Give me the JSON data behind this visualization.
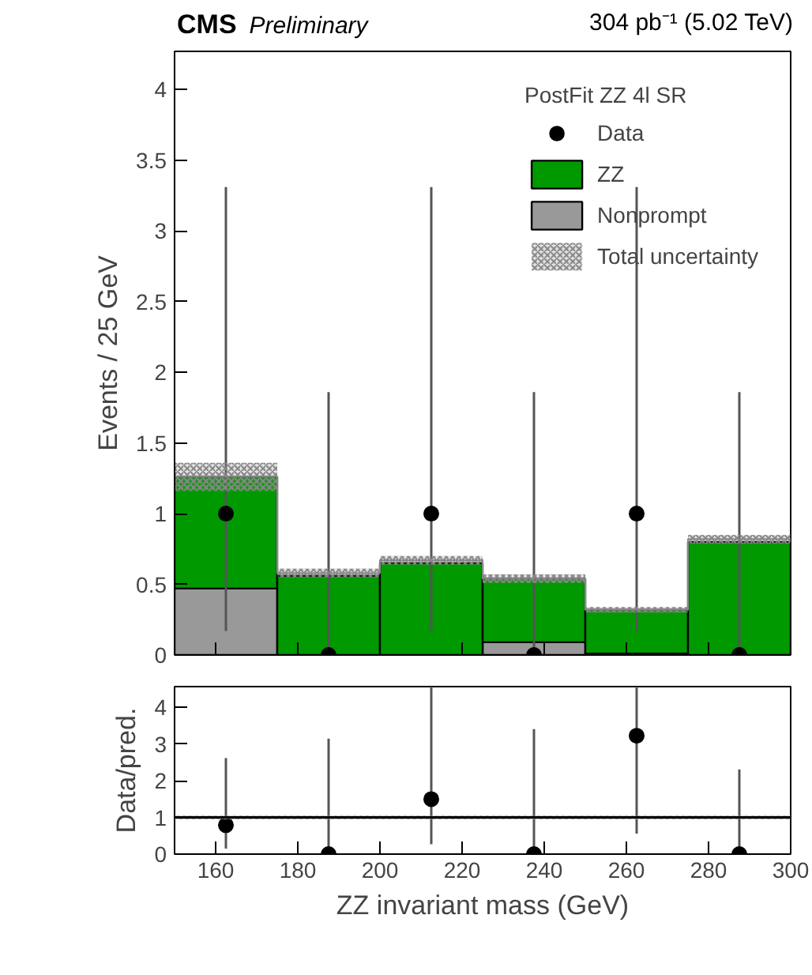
{
  "chart_data": [
    {
      "type": "bar",
      "stacked": true,
      "title": "CMS",
      "subtitle": "Preliminary",
      "annotations": [
        "304 pb⁻¹ (5.02 TeV)"
      ],
      "ylabel": "Events / 25 GeV",
      "legend_title": "PostFit ZZ 4l SR",
      "legend": "top right",
      "grid": false,
      "tick_labels": "y",
      "x": [
        162.5,
        187.5,
        212.5,
        237.5,
        262.5,
        287.5
      ],
      "xlim": [
        150,
        300
      ],
      "xticks": [
        160,
        180,
        200,
        220,
        240,
        260,
        280,
        300
      ],
      "ylim": [
        0,
        4.27
      ],
      "yticks": [
        0,
        0.5,
        1,
        1.5,
        2,
        2.5,
        3,
        3.5,
        4
      ],
      "series": [
        {
          "name": "Data",
          "type": "scatter",
          "marker": "circle",
          "color": "#000000",
          "values": [
            1,
            0,
            1,
            0,
            1,
            0
          ],
          "errors": [
            [
              0.17,
              3.31
            ],
            [
              0,
              1.86
            ],
            [
              0.17,
              3.31
            ],
            [
              0,
              1.86
            ],
            [
              0.17,
              3.31
            ],
            [
              0,
              1.86
            ]
          ]
        },
        {
          "name": "ZZ",
          "color": "#009900",
          "values": [
            0.79,
            0.56,
            0.65,
            0.45,
            0.31,
            0.8
          ]
        },
        {
          "name": "Nonprompt",
          "color": "#999999",
          "values": [
            0.47,
            null,
            null,
            0.09,
            0.01,
            null
          ]
        },
        {
          "name": "Total uncertainty",
          "type": "step",
          "color": "#888888",
          "x": [
            150,
            175,
            200,
            225,
            250,
            275,
            300
          ],
          "values": [
            1.26,
            0.58,
            0.67,
            0.54,
            0.32,
            0.82,
            0.82
          ],
          "lower": [
            1.16,
            0.55,
            0.64,
            0.51,
            0.3,
            0.79,
            0.79
          ],
          "upper": [
            1.36,
            0.61,
            0.7,
            0.57,
            0.34,
            0.85,
            0.85
          ]
        }
      ]
    },
    {
      "type": "scatter",
      "marker": "circle",
      "xlabel": "ZZ invariant mass (GeV)",
      "ylabel": "Data/pred.",
      "grid": false,
      "x": [
        162.5,
        187.5,
        212.5,
        237.5,
        262.5,
        287.5
      ],
      "xlim": [
        150,
        300
      ],
      "xticks": [
        160,
        180,
        200,
        220,
        240,
        260,
        280,
        300
      ],
      "ylim": [
        0,
        4.57
      ],
      "yticks": [
        0,
        1,
        2,
        3,
        4
      ],
      "series": [
        {
          "color": "#000000",
          "values": [
            0.79,
            0,
            1.5,
            0,
            3.23,
            0
          ],
          "errors": [
            [
              0.15,
              2.62
            ],
            [
              0,
              3.15
            ],
            [
              0.27,
              4.57
            ],
            [
              0,
              3.41
            ],
            [
              0.56,
              4.57
            ],
            [
              0,
              2.31
            ]
          ]
        }
      ],
      "bands": [
        {
          "axis": "y",
          "from": 0.95,
          "to": 1.05,
          "color": "#999999"
        }
      ],
      "ref_lines": [
        {
          "axis": "y",
          "value": 1,
          "color": "#000000"
        }
      ]
    }
  ]
}
